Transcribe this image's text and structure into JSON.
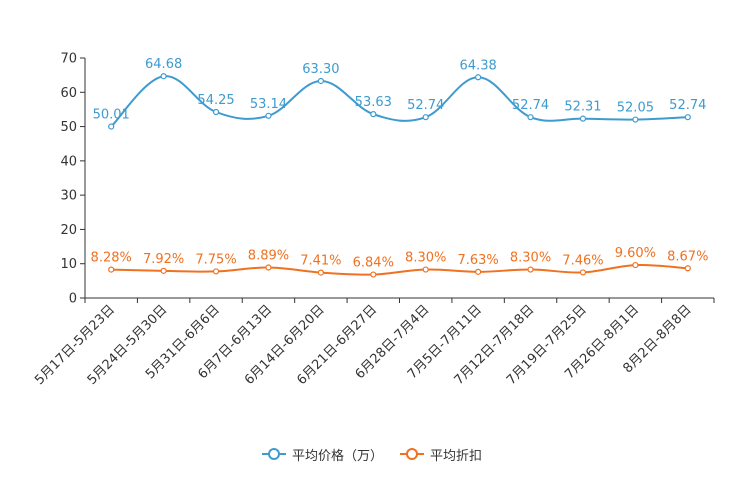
{
  "chart_data": {
    "type": "line",
    "categories": [
      "5月17日-5月23日",
      "5月24日-5月30日",
      "5月31日-6月6日",
      "6月7日-6月13日",
      "6月14日-6月20日",
      "6月21日-6月27日",
      "6月28日-7月4日",
      "7月5日-7月11日",
      "7月12日-7月18日",
      "7月19日-7月25日",
      "7月26日-8月1日",
      "8月2日-8月8日"
    ],
    "ylim": [
      0,
      70
    ],
    "yticks": [
      0,
      10,
      20,
      30,
      40,
      50,
      60,
      70
    ],
    "series": [
      {
        "name": "平均价格（万）",
        "color": "#3d9bd0",
        "values": [
          50.01,
          64.68,
          54.25,
          53.14,
          63.3,
          53.63,
          52.74,
          64.38,
          52.74,
          52.31,
          52.05,
          52.74
        ],
        "labels": [
          "50.01",
          "64.68",
          "54.25",
          "53.14",
          "63.30",
          "53.63",
          "52.74",
          "64.38",
          "52.74",
          "52.31",
          "52.05",
          "52.74"
        ]
      },
      {
        "name": "平均折扣",
        "color": "#f07120",
        "values": [
          8.28,
          7.92,
          7.75,
          8.89,
          7.41,
          6.84,
          8.3,
          7.63,
          8.3,
          7.46,
          9.6,
          8.67
        ],
        "labels": [
          "8.28%",
          "7.92%",
          "7.75%",
          "8.89%",
          "7.41%",
          "6.84%",
          "8.30%",
          "7.63%",
          "8.30%",
          "7.46%",
          "9.60%",
          "8.67%"
        ]
      }
    ],
    "legend_position": "bottom",
    "grid": false,
    "title": "",
    "xlabel": "",
    "ylabel": ""
  }
}
